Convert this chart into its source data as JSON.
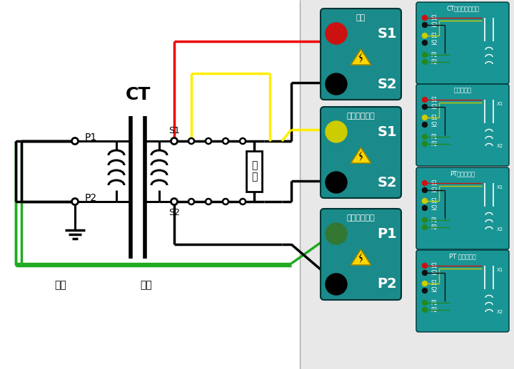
{
  "bg_color": "#e8e8e8",
  "left_bg": "#ffffff",
  "teal": "#1a8a8a",
  "sub_teal": "#1a9090",
  "black": "#000000",
  "red": "#ee0000",
  "yellow": "#ffee00",
  "green": "#22aa22",
  "dark_green": "#228822",
  "white": "#ffffff",
  "figsize": [
    7.2,
    5.18
  ],
  "dpi": 100,
  "panel1_title": "输出",
  "panel2_title": "输出电压测量",
  "panel3_title": "感应电压测量",
  "sub1_title": "CT励磁变比接线图",
  "sub2_title": "负荷接线图",
  "sub3_title": "PT励磁接线图",
  "sub4_title": "PT 变比接线图",
  "ct_label": "CT",
  "yici": "一次",
  "erci": "二次",
  "p1": "P1",
  "p2": "P2",
  "s1": "S1",
  "s2": "S2",
  "fuze": "负\n载",
  "x1": "X1",
  "x2": "X2",
  "yici2": "一次",
  "erci2": "二次"
}
